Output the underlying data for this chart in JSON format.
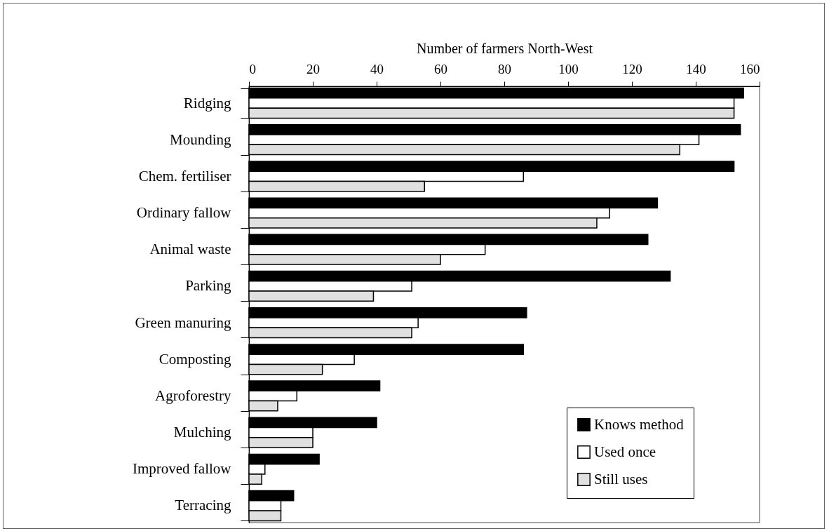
{
  "chart_data": {
    "type": "bar",
    "orientation": "horizontal",
    "xlabel": "Number of farmers North-West",
    "categories": [
      "Ridging",
      "Mounding",
      "Chem. fertiliser",
      "Ordinary fallow",
      "Animal waste",
      "Parking",
      "Green manuring",
      "Composting",
      "Agroforestry",
      "Mulching",
      "Improved fallow",
      "Terracing"
    ],
    "series": [
      {
        "name": "Knows method",
        "color": "#000000",
        "values": [
          155,
          154,
          152,
          128,
          125,
          132,
          87,
          86,
          41,
          40,
          22,
          14
        ]
      },
      {
        "name": "Used once",
        "color": "#ffffff",
        "values": [
          152,
          141,
          86,
          113,
          74,
          51,
          53,
          33,
          15,
          20,
          5,
          10
        ]
      },
      {
        "name": "Still uses",
        "color": "#e0e0e0",
        "values": [
          152,
          135,
          55,
          109,
          60,
          39,
          51,
          23,
          9,
          20,
          4,
          10
        ]
      }
    ],
    "xlim": [
      0,
      160
    ],
    "xticks": [
      0,
      20,
      40,
      60,
      80,
      100,
      120,
      140,
      160
    ],
    "grid": false,
    "legend": "bottom right"
  }
}
